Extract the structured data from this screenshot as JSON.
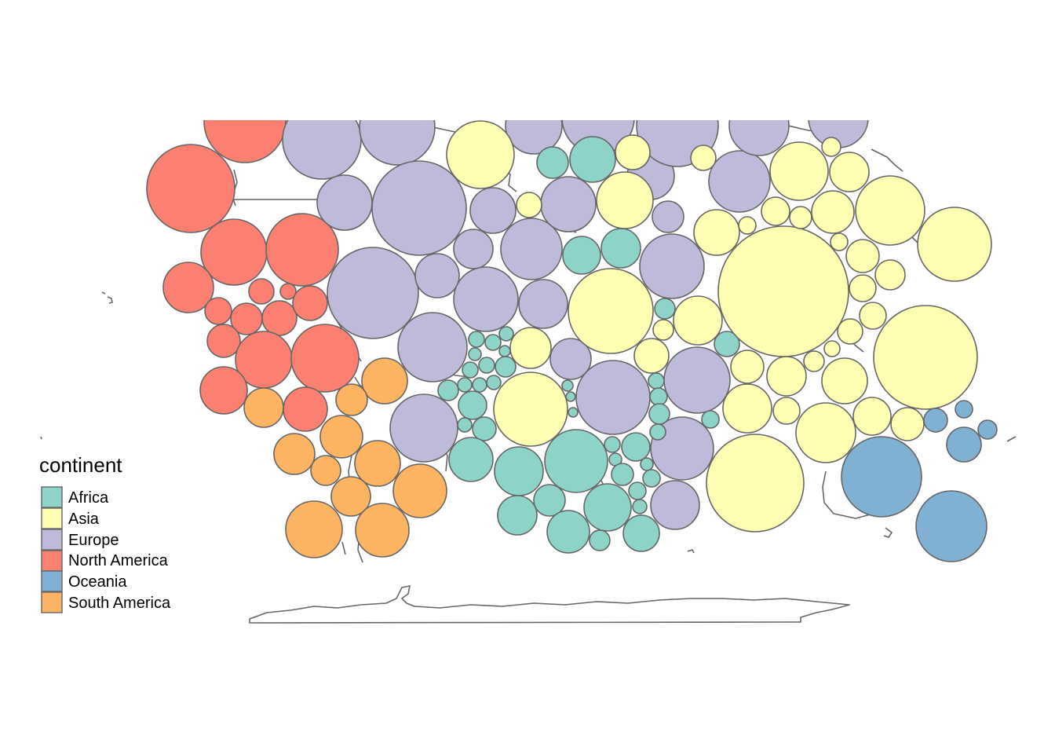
{
  "legend": {
    "title": "continent",
    "items": [
      {
        "label": "Africa",
        "color": "#8DD3C7"
      },
      {
        "label": "Asia",
        "color": "#FFFFB3"
      },
      {
        "label": "Europe",
        "color": "#BEBADA"
      },
      {
        "label": "North America",
        "color": "#FB8072"
      },
      {
        "label": "Oceania",
        "color": "#80B1D3"
      },
      {
        "label": "South America",
        "color": "#FDB462"
      }
    ]
  },
  "colors": {
    "outline": "#666666",
    "background": "#FFFFFF"
  }
}
